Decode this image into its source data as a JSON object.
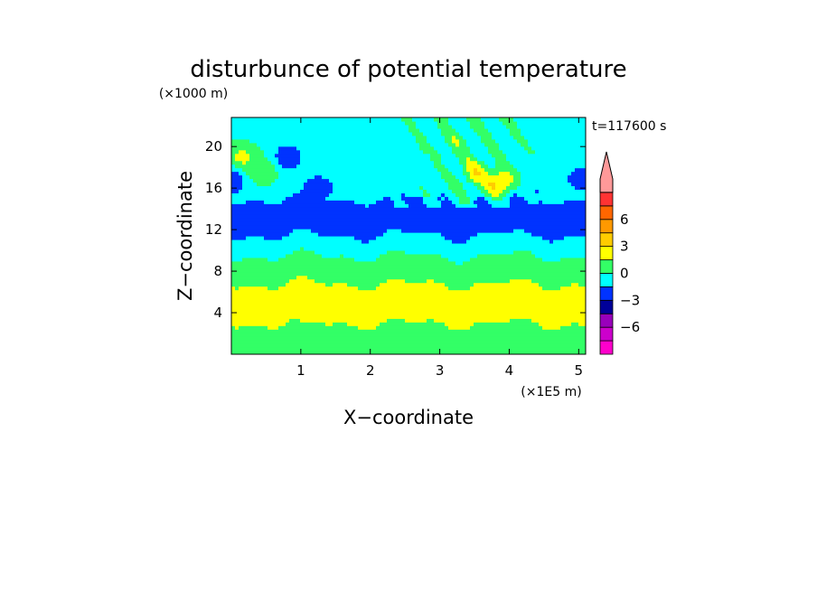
{
  "chart_data": {
    "type": "heatmap",
    "title": "disturbunce of potential temperature",
    "time_label": "t=117600 s",
    "xlabel": "X−coordinate",
    "ylabel": "Z−coordinate",
    "x_unit": "(×1E5 m)",
    "y_unit": "(×1000 m)",
    "xlim": [
      0,
      5.1
    ],
    "ylim": [
      0,
      22.8
    ],
    "x_ticks": [
      {
        "value": 1,
        "label": "1"
      },
      {
        "value": 2,
        "label": "2"
      },
      {
        "value": 3,
        "label": "3"
      },
      {
        "value": 4,
        "label": "4"
      },
      {
        "value": 5,
        "label": "5"
      }
    ],
    "y_ticks": [
      {
        "value": 4,
        "label": "4"
      },
      {
        "value": 8,
        "label": "8"
      },
      {
        "value": 12,
        "label": "12"
      },
      {
        "value": 16,
        "label": "16"
      },
      {
        "value": 20,
        "label": "20"
      }
    ],
    "z_layers": [
      {
        "z_bottom": 0.0,
        "z_top": 1.8,
        "value": 0.2
      },
      {
        "z_bottom": 1.8,
        "z_top": 3.0,
        "value": 1.2
      },
      {
        "z_bottom": 3.0,
        "z_top": 6.8,
        "value": 2.2
      },
      {
        "z_bottom": 6.8,
        "z_top": 8.2,
        "value": 1.0
      },
      {
        "z_bottom": 8.2,
        "z_top": 9.5,
        "value": 0.1
      },
      {
        "z_bottom": 9.5,
        "z_top": 11.5,
        "value": -0.8
      },
      {
        "z_bottom": 11.5,
        "z_top": 15.0,
        "value": -1.6
      },
      {
        "z_bottom": 15.0,
        "z_top": 19.0,
        "value": -0.6
      },
      {
        "z_bottom": 19.0,
        "z_top": 22.8,
        "value": -0.3
      }
    ],
    "features": [
      {
        "x": 0.15,
        "z": 18.8,
        "value": 2.4
      },
      {
        "x": 0.8,
        "z": 19.0,
        "value": -2.8
      },
      {
        "x": 1.25,
        "z": 16.0,
        "value": -2.6
      },
      {
        "x": 0.05,
        "z": 16.8,
        "value": -2.5
      },
      {
        "x": 0.45,
        "z": 17.6,
        "value": 1.5
      },
      {
        "x": 3.85,
        "z": 16.6,
        "value": 3.6
      },
      {
        "x": 3.5,
        "z": 17.5,
        "value": 2.2
      },
      {
        "x": 4.3,
        "z": 15.3,
        "value": -1.6
      },
      {
        "x": 4.35,
        "z": 12.8,
        "value": -2.6
      },
      {
        "x": 5.05,
        "z": 16.9,
        "value": -2.4
      },
      {
        "x": 0.55,
        "z": 4.3,
        "value": 2.6
      },
      {
        "x": 1.15,
        "z": 4.6,
        "value": 2.6
      },
      {
        "x": 3.2,
        "z": 20.5,
        "value": 0.6
      },
      {
        "x": 1.6,
        "z": 21.0,
        "value": -0.8
      }
    ],
    "colorbar": {
      "ticks": [
        "6",
        "3",
        "0",
        "−3",
        "−6"
      ],
      "levels": [
        -9,
        -7.5,
        -6,
        -4.5,
        -3,
        -1.5,
        0,
        1.5,
        3,
        4.5,
        6,
        7.5,
        9
      ],
      "colors": [
        "#ff00cc",
        "#cc00cc",
        "#9900bb",
        "#000099",
        "#0033ff",
        "#00ffff",
        "#33ff66",
        "#ffff00",
        "#ffcc00",
        "#ff9900",
        "#ff6600",
        "#ff3333",
        "#ff9999"
      ]
    }
  }
}
